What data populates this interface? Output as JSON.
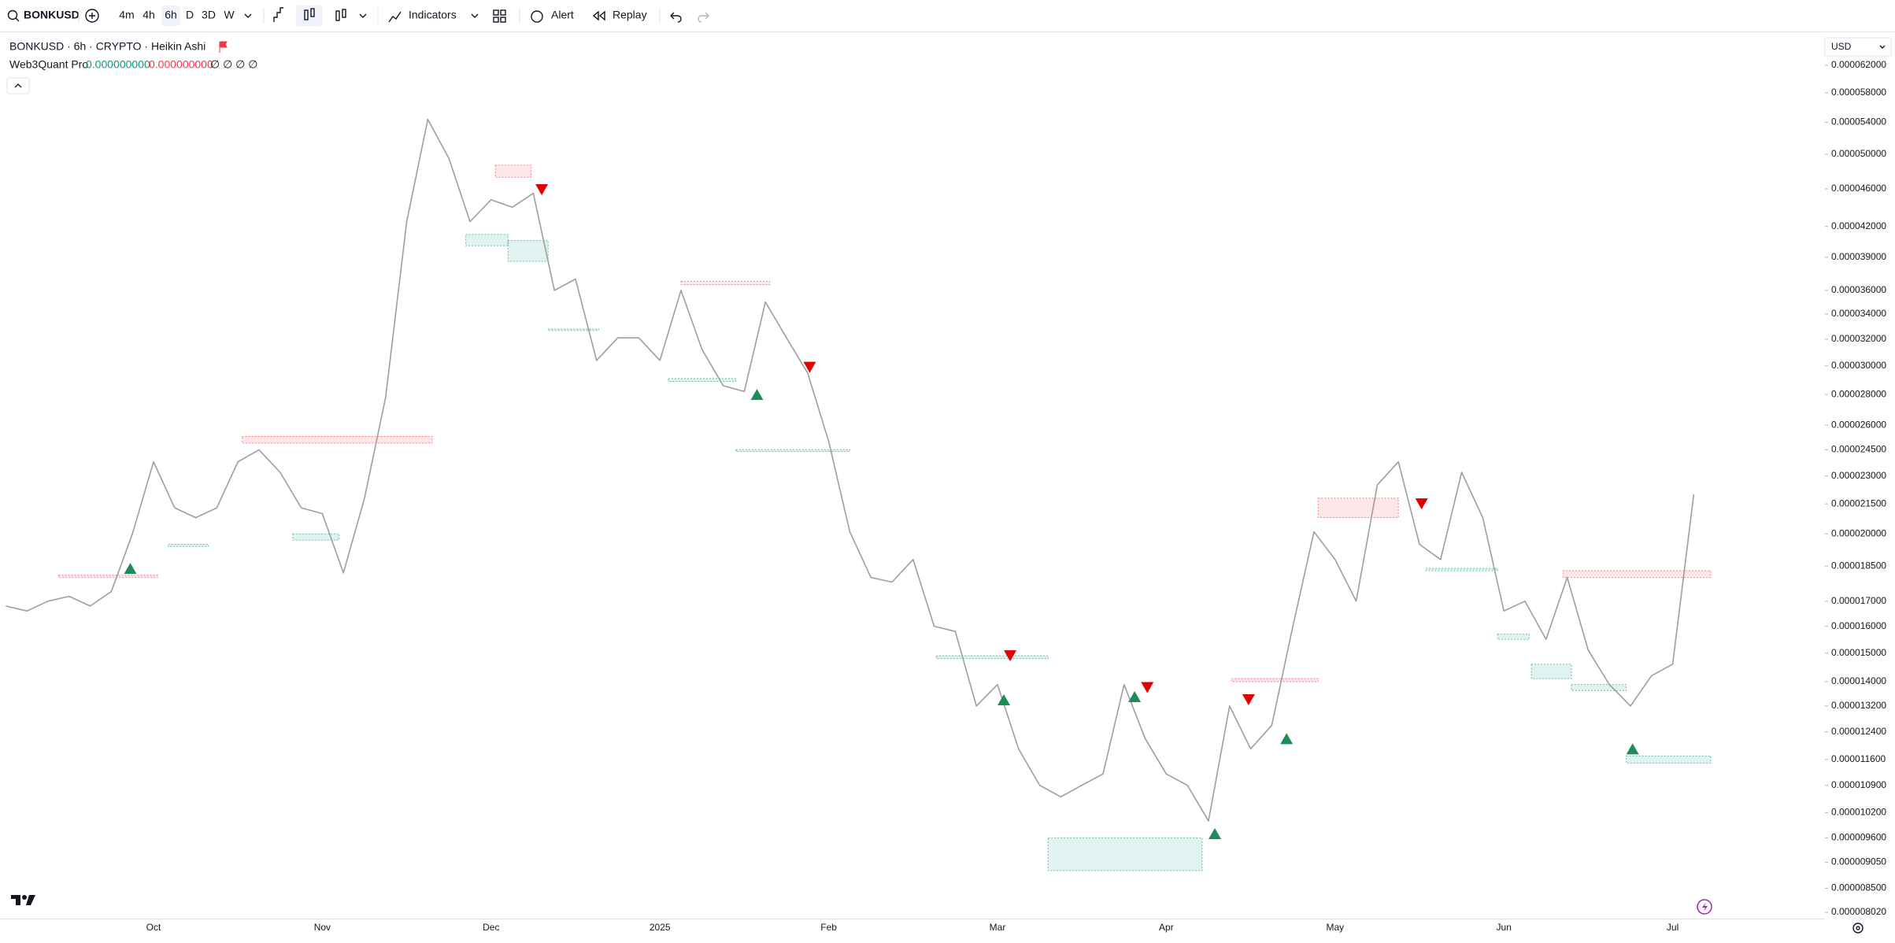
{
  "toolbar": {
    "symbol": "BONKUSD",
    "intervals": [
      "4m",
      "4h",
      "6h",
      "D",
      "3D",
      "W"
    ],
    "indicators": "Indicators",
    "alert": "Alert",
    "replay": "Replay"
  },
  "legend": {
    "title": "BONKUSD · 6h · CRYPTO · Heikin Ashi",
    "indicator": "Web3Quant Pro",
    "value_up": "0.000000000",
    "value_down": "0.000000000",
    "placeholders": "∅ ∅ ∅ ∅"
  },
  "currency": "USD",
  "chart_data": {
    "type": "line",
    "log": true,
    "grid": false,
    "color": "#9e9e9e",
    "categories": [
      null,
      null,
      null,
      null,
      null,
      null,
      null,
      "Oct",
      null,
      null,
      null,
      null,
      null,
      null,
      null,
      "Nov",
      null,
      null,
      null,
      null,
      null,
      null,
      null,
      "Dec",
      null,
      null,
      null,
      null,
      null,
      null,
      null,
      "2025",
      null,
      null,
      null,
      null,
      null,
      null,
      null,
      "Feb",
      null,
      null,
      null,
      null,
      null,
      null,
      null,
      "Mar",
      null,
      null,
      null,
      null,
      null,
      null,
      null,
      "Apr",
      null,
      null,
      null,
      null,
      null,
      null,
      null,
      "May",
      null,
      null,
      null,
      null,
      null,
      null,
      null,
      "Jun",
      null,
      null,
      null,
      null,
      null,
      null,
      null,
      "Jul",
      null
    ],
    "values": [
      1.68e-05,
      1.66e-05,
      1.7e-05,
      1.72e-05,
      1.68e-05,
      1.74e-05,
      2e-05,
      2.38e-05,
      2.13e-05,
      2.08e-05,
      2.13e-05,
      2.38e-05,
      2.45e-05,
      2.32e-05,
      2.13e-05,
      2.1e-05,
      1.82e-05,
      2.18e-05,
      2.78e-05,
      4.25e-05,
      5.44e-05,
      4.95e-05,
      4.25e-05,
      4.48e-05,
      4.4e-05,
      4.55e-05,
      3.6e-05,
      3.7e-05,
      3.04e-05,
      3.21e-05,
      3.21e-05,
      3.04e-05,
      3.6e-05,
      3.12e-05,
      2.86e-05,
      2.82e-05,
      3.5e-05,
      3.21e-05,
      2.95e-05,
      2.5e-05,
      2.01e-05,
      1.8e-05,
      1.78e-05,
      1.88e-05,
      1.6e-05,
      1.58e-05,
      1.32e-05,
      1.39e-05,
      1.19e-05,
      1.09e-05,
      1.06e-05,
      1.09e-05,
      1.12e-05,
      1.39e-05,
      1.22e-05,
      1.12e-05,
      1.09e-05,
      1e-05,
      1.32e-05,
      1.19e-05,
      1.26e-05,
      1.6e-05,
      2.01e-05,
      1.88e-05,
      1.7e-05,
      2.25e-05,
      2.38e-05,
      1.95e-05,
      1.88e-05,
      2.32e-05,
      2.08e-05,
      1.66e-05,
      1.7e-05,
      1.55e-05,
      1.8e-05,
      1.51e-05,
      1.39e-05,
      1.32e-05,
      1.42e-05,
      1.46e-05,
      2.2e-05
    ],
    "ylim": [
      7.9e-06,
      6.7e-05
    ],
    "yticks": [
      {
        "value": 6.2e-05,
        "label": "0.000062000"
      },
      {
        "value": 5.8e-05,
        "label": "0.000058000"
      },
      {
        "value": 5.4e-05,
        "label": "0.000054000"
      },
      {
        "value": 5e-05,
        "label": "0.000050000"
      },
      {
        "value": 4.6e-05,
        "label": "0.000046000"
      },
      {
        "value": 4.2e-05,
        "label": "0.000042000"
      },
      {
        "value": 3.9e-05,
        "label": "0.000039000"
      },
      {
        "value": 3.6e-05,
        "label": "0.000036000"
      },
      {
        "value": 3.4e-05,
        "label": "0.000034000"
      },
      {
        "value": 3.2e-05,
        "label": "0.000032000"
      },
      {
        "value": 3e-05,
        "label": "0.000030000"
      },
      {
        "value": 2.8e-05,
        "label": "0.000028000"
      },
      {
        "value": 2.6e-05,
        "label": "0.000026000"
      },
      {
        "value": 2.45e-05,
        "label": "0.000024500"
      },
      {
        "value": 2.3e-05,
        "label": "0.000023000"
      },
      {
        "value": 2.15e-05,
        "label": "0.000021500"
      },
      {
        "value": 2e-05,
        "label": "0.000020000"
      },
      {
        "value": 1.85e-05,
        "label": "0.000018500"
      },
      {
        "value": 1.7e-05,
        "label": "0.000017000"
      },
      {
        "value": 1.6e-05,
        "label": "0.000016000"
      },
      {
        "value": 1.5e-05,
        "label": "0.000015000"
      },
      {
        "value": 1.4e-05,
        "label": "0.000014000"
      },
      {
        "value": 1.32e-05,
        "label": "0.000013200"
      },
      {
        "value": 1.24e-05,
        "label": "0.000012400"
      },
      {
        "value": 1.16e-05,
        "label": "0.000011600"
      },
      {
        "value": 1.09e-05,
        "label": "0.000010900"
      },
      {
        "value": 1.02e-05,
        "label": "0.000010200"
      },
      {
        "value": 9.6e-06,
        "label": "0.000009600"
      },
      {
        "value": 9.05e-06,
        "label": "0.000009050"
      },
      {
        "value": 8.5e-06,
        "label": "0.000008500"
      },
      {
        "value": 8.02e-06,
        "label": "0.000008020"
      }
    ],
    "resistance_color": "#f23645",
    "support_color": "#089981",
    "buy_color": "#1e8c5a",
    "sell_color": "#e00000",
    "resistance_zones": [
      {
        "from": 2.5,
        "to": 7.2,
        "low": 1.8e-05,
        "high": 1.81e-05
      },
      {
        "from": 11.2,
        "to": 20.2,
        "low": 2.49e-05,
        "high": 2.53e-05
      },
      {
        "from": 23.2,
        "to": 24.9,
        "low": 4.73e-05,
        "high": 4.87e-05
      },
      {
        "from": 32.0,
        "to": 36.2,
        "low": 3.65e-05,
        "high": 3.68e-05
      },
      {
        "from": 58.1,
        "to": 62.2,
        "low": 1.4e-05,
        "high": 1.41e-05
      },
      {
        "from": 62.2,
        "to": 66.0,
        "low": 2.08e-05,
        "high": 2.18e-05
      },
      {
        "from": 73.8,
        "to": 80.8,
        "low": 1.8e-05,
        "high": 1.83e-05
      }
    ],
    "support_zones": [
      {
        "from": 7.7,
        "to": 9.6,
        "low": 1.94e-05,
        "high": 1.95e-05
      },
      {
        "from": 13.6,
        "to": 15.8,
        "low": 1.97e-05,
        "high": 2e-05
      },
      {
        "from": 21.8,
        "to": 23.8,
        "low": 4.01e-05,
        "high": 4.12e-05
      },
      {
        "from": 23.8,
        "to": 25.7,
        "low": 3.86e-05,
        "high": 4.06e-05
      },
      {
        "from": 25.7,
        "to": 28.1,
        "low": 3.27e-05,
        "high": 3.28e-05
      },
      {
        "from": 31.4,
        "to": 34.6,
        "low": 2.89e-05,
        "high": 2.91e-05
      },
      {
        "from": 34.6,
        "to": 40.0,
        "low": 2.44e-05,
        "high": 2.45e-05
      },
      {
        "from": 44.1,
        "to": 49.4,
        "low": 1.48e-05,
        "high": 1.49e-05
      },
      {
        "from": 49.4,
        "to": 56.7,
        "low": 8.87e-06,
        "high": 9.6e-06
      },
      {
        "from": 67.3,
        "to": 70.7,
        "low": 1.83e-05,
        "high": 1.84e-05
      },
      {
        "from": 70.7,
        "to": 72.2,
        "low": 1.55e-05,
        "high": 1.57e-05
      },
      {
        "from": 72.3,
        "to": 74.2,
        "low": 1.41e-05,
        "high": 1.46e-05
      },
      {
        "from": 74.2,
        "to": 76.8,
        "low": 1.37e-05,
        "high": 1.39e-05
      },
      {
        "from": 76.8,
        "to": 80.8,
        "low": 1.15e-05,
        "high": 1.17e-05
      }
    ],
    "buy_signals": [
      {
        "index": 5.9,
        "price": 1.84e-05
      },
      {
        "index": 35.6,
        "price": 2.8e-05
      },
      {
        "index": 47.3,
        "price": 1.34e-05
      },
      {
        "index": 53.5,
        "price": 1.35e-05
      },
      {
        "index": 57.3,
        "price": 9.7e-06
      },
      {
        "index": 60.7,
        "price": 1.22e-05
      },
      {
        "index": 77.1,
        "price": 1.19e-05
      }
    ],
    "sell_signals": [
      {
        "index": 25.4,
        "price": 4.59e-05
      },
      {
        "index": 38.1,
        "price": 2.99e-05
      },
      {
        "index": 47.6,
        "price": 1.49e-05
      },
      {
        "index": 54.1,
        "price": 1.38e-05
      },
      {
        "index": 58.9,
        "price": 1.34e-05
      },
      {
        "index": 67.1,
        "price": 2.15e-05
      }
    ]
  }
}
